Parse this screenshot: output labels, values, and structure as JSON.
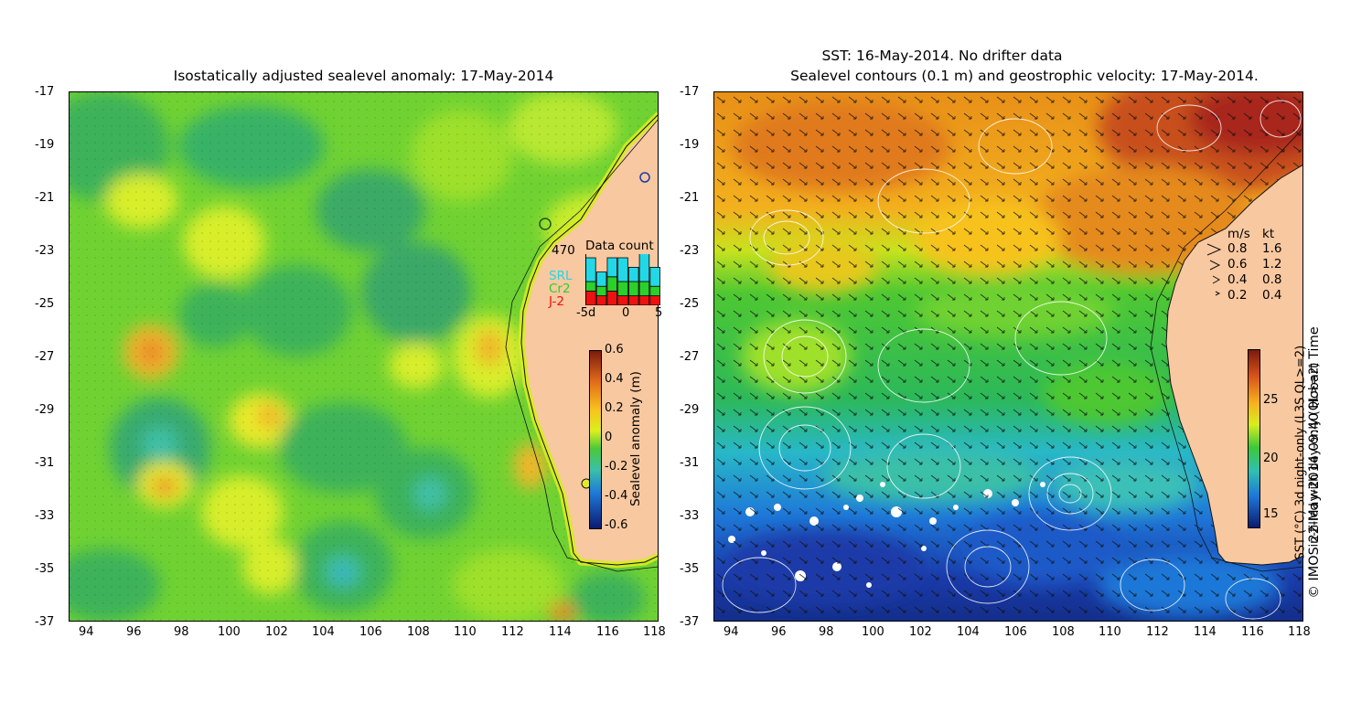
{
  "left_panel": {
    "title": "Isostatically adjusted sealevel anomaly: 17-May-2014",
    "x_ticks": [
      "94",
      "96",
      "98",
      "100",
      "102",
      "104",
      "106",
      "108",
      "110",
      "112",
      "114",
      "116",
      "118"
    ],
    "y_ticks": [
      "-17",
      "-19",
      "-21",
      "-23",
      "-25",
      "-27",
      "-29",
      "-31",
      "-33",
      "-35",
      "-37"
    ],
    "colorbar": {
      "label": "Sealevel anomaly (m)",
      "ticks": [
        "0.6",
        "0.4",
        "0.2",
        "0",
        "-0.2",
        "-0.4",
        "-0.6"
      ]
    },
    "data_count": {
      "title": "Data count",
      "max_label": "470",
      "legend": [
        "SRL",
        "Cr2",
        "J-2"
      ],
      "legend_colors": [
        "#22d8e6",
        "#2bd02b",
        "#ee1111"
      ],
      "x_ticks": [
        "-5d",
        "0",
        "5"
      ],
      "values": {
        "SRL": [
          5,
          3,
          4,
          5,
          3,
          6,
          4
        ],
        "Cr2": [
          2,
          2,
          3,
          3,
          3,
          3,
          2
        ],
        "J-2": [
          3,
          2,
          3,
          2,
          2,
          2,
          2
        ]
      }
    }
  },
  "right_panel": {
    "title_line1": "SST: 16-May-2014. No drifter data",
    "title_line2": "Sealevel contours (0.1 m) and geostrophic velocity: 17-May-2014.",
    "x_ticks": [
      "94",
      "96",
      "98",
      "100",
      "102",
      "104",
      "106",
      "108",
      "110",
      "112",
      "114",
      "116",
      "118"
    ],
    "y_ticks": [
      "-17",
      "-19",
      "-21",
      "-23",
      "-25",
      "-27",
      "-29",
      "-31",
      "-33",
      "-35",
      "-37"
    ],
    "colorbar": {
      "label_line1": "SST (°C) 3d night-only (L3S QL>=2)",
      "label_line2": "in-filled with day-only (QL>=2)",
      "ticks": [
        "25",
        "20",
        "15"
      ]
    },
    "velocity_legend": {
      "header_ms": "m/s",
      "header_kt": "kt",
      "rows": [
        {
          "ms": "0.8",
          "kt": "1.6"
        },
        {
          "ms": "0.6",
          "kt": "1.2"
        },
        {
          "ms": "0.4",
          "kt": "0.8"
        },
        {
          "ms": "0.2",
          "kt": "0.4"
        }
      ]
    }
  },
  "credit": "© IMOS 22-May-2014 09:40 Hobart Time"
}
